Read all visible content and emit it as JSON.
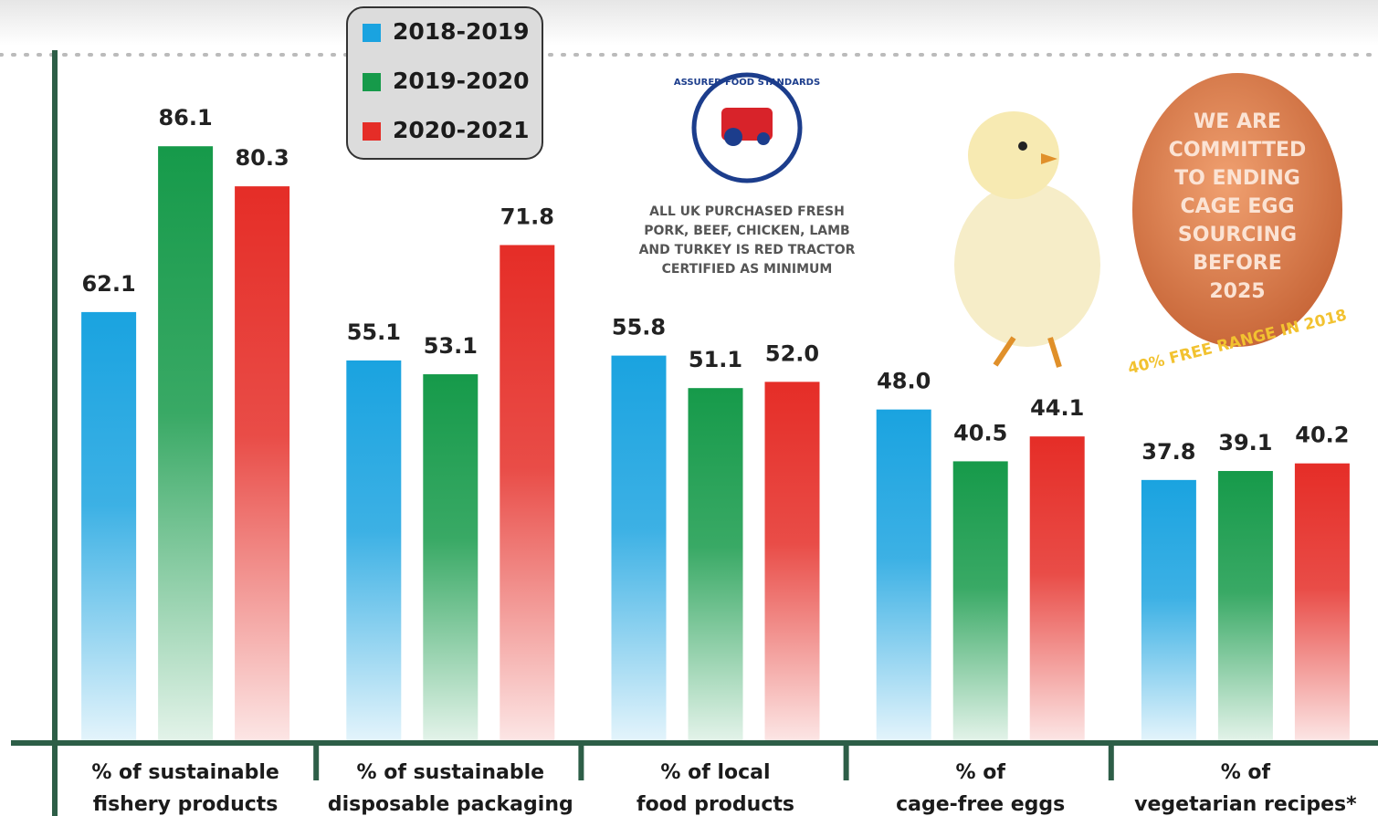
{
  "chart_data": {
    "type": "bar",
    "categories": [
      [
        "% of sustainable",
        "fishery products"
      ],
      [
        "% of sustainable",
        "disposable packaging"
      ],
      [
        "% of local",
        "food products"
      ],
      [
        "% of",
        "cage-free eggs"
      ],
      [
        "% of",
        "vegetarian recipes*"
      ]
    ],
    "series": [
      {
        "name": "2018-2019",
        "color": "#1aa3e0",
        "values": [
          62.1,
          55.1,
          55.8,
          48.0,
          37.8
        ],
        "value_labels": [
          "62.1",
          "55.1",
          "55.8",
          "48.0",
          "37.8"
        ]
      },
      {
        "name": "2019-2020",
        "color": "#169a4a",
        "values": [
          86.1,
          53.1,
          51.1,
          40.5,
          39.1
        ],
        "value_labels": [
          "86.1",
          "53.1",
          "51.1",
          "40.5",
          "39.1"
        ]
      },
      {
        "name": "2020-2021",
        "color": "#e52d27",
        "values": [
          80.3,
          71.8,
          52.0,
          44.1,
          40.2
        ],
        "value_labels": [
          "80.3",
          "71.8",
          "52.0",
          "44.1",
          "40.2"
        ]
      }
    ],
    "ylim": [
      0,
      100
    ],
    "legend": "top-left",
    "annotations": {
      "logo": "ASSURED FOOD STANDARDS",
      "red_tractor": [
        "ALL UK PURCHASED FRESH",
        "PORK, BEEF, CHICKEN, LAMB",
        "AND TURKEY IS RED TRACTOR",
        "CERTIFIED AS MINIMUM"
      ],
      "egg": [
        "WE ARE",
        "COMMITTED",
        "TO ENDING",
        "CAGE EGG",
        "SOURCING",
        "BEFORE",
        "2025"
      ],
      "egg_ring": "40% FREE RANGE IN 2018"
    }
  }
}
